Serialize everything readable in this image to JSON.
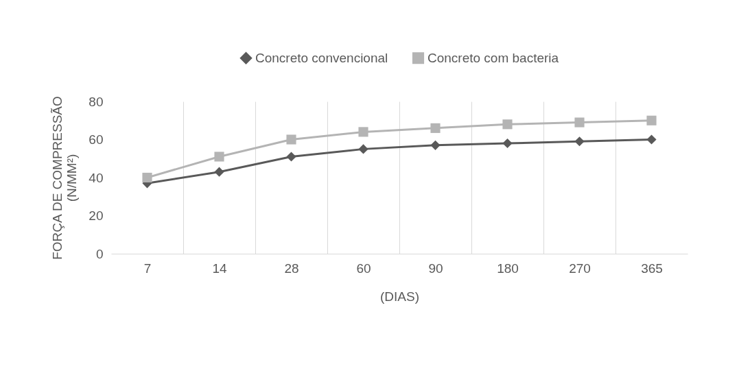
{
  "chart_data": {
    "type": "line",
    "xlabel": "(DIAS)",
    "ylabel": "FORÇA DE COMPRESSÃO\n(N/MM²)",
    "categories": [
      "7",
      "14",
      "28",
      "60",
      "90",
      "180",
      "270",
      "365"
    ],
    "series": [
      {
        "name": "Concreto convencional",
        "color": "#595959",
        "marker": "diamond",
        "values": [
          37,
          43,
          51,
          55,
          57,
          58,
          59,
          60
        ]
      },
      {
        "name": "Concreto com bacteria",
        "color": "#b4b4b4",
        "marker": "square",
        "values": [
          40,
          51,
          60,
          64,
          66,
          68,
          69,
          70
        ]
      }
    ],
    "ylim": [
      0,
      80
    ],
    "yticks": [
      0,
      20,
      40,
      60,
      80
    ],
    "grid": "x",
    "legend": "top",
    "line_style": "solid"
  }
}
